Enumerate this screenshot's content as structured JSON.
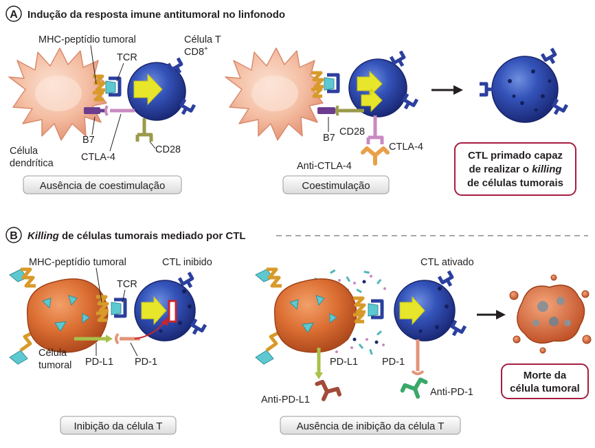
{
  "panel_a": {
    "badge": "A",
    "title": "Indução da resposta imune antitumoral no linfonodo",
    "left": {
      "mhc_label": "MHC-peptídio tumoral",
      "tcr_label": "TCR",
      "tcell_label_line1": "Célula T",
      "tcell_label_line2": "CD8",
      "tcell_label_sup": "+",
      "dc_label_line1": "Célula",
      "dc_label_line2": "dendrítica",
      "b7_label": "B7",
      "ctla4_label": "CTLA-4",
      "cd28_label": "CD28",
      "caption": "Ausência de coestimulação"
    },
    "right": {
      "b7_label": "B7",
      "cd28_label": "CD28",
      "ctla4_label": "CTLA-4",
      "anti_ctla4_label": "Anti-CTLA-4",
      "caption": "Coestimulação"
    },
    "result": {
      "line1": "CTL primado capaz",
      "line2_pre": "de realizar o ",
      "line2_italic": "killing",
      "line3": "de células tumorais"
    }
  },
  "panel_b": {
    "badge": "B",
    "title_italic": "Killing",
    "title_rest": " de células tumorais mediado por CTL",
    "left": {
      "mhc_label": "MHC-peptídio tumoral",
      "tcr_label": "TCR",
      "ctl_label": "CTL inibido",
      "tumor_label_line1": "Célula",
      "tumor_label_line2": "tumoral",
      "pdl1_label": "PD-L1",
      "pd1_label": "PD-1",
      "caption": "Inibição da célula T"
    },
    "right": {
      "ctl_label": "CTL ativado",
      "pdl1_label": "PD-L1",
      "pd1_label": "PD-1",
      "anti_pdl1_label": "Anti-PD-L1",
      "anti_pd1_label": "Anti-PD-1",
      "caption": "Ausência de inibição da célula T"
    },
    "result": {
      "line1": "Morte da",
      "line2": "célula tumoral"
    }
  },
  "colors": {
    "dendritic_cell": "#f2b89e",
    "tcell_blue": "#2b3f9e",
    "tumor_cell": "#d96a32",
    "mhc": "#d89a2a",
    "tcr_cyan": "#5ec8d0",
    "b7": "#6a3d8f",
    "ctla4": "#c98ac2",
    "cd28": "#9a9a4a",
    "pdl1": "#a9c04a",
    "pd1": "#e3957a",
    "signal_yellow": "#e8e62a",
    "inhibit_red": "#c8252c",
    "result_border": "#a51c3f"
  }
}
